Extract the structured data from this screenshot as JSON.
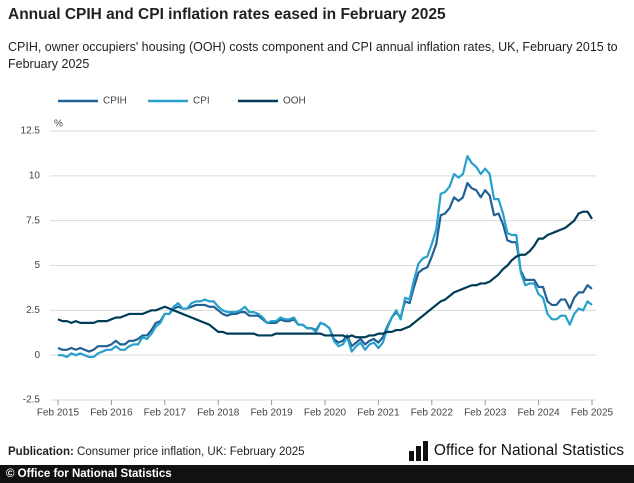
{
  "chart_data": {
    "type": "line",
    "title": "Annual CPIH and CPI inflation rates eased in February 2025",
    "subtitle": "CPIH, owner occupiers' housing (OOH) costs component and CPI annual inflation rates, UK, February 2015 to February 2025",
    "y_unit_label": "%",
    "categories": [
      "Feb 2015",
      null,
      null,
      null,
      null,
      null,
      null,
      null,
      null,
      null,
      null,
      null,
      "Feb 2016",
      null,
      null,
      null,
      null,
      null,
      null,
      null,
      null,
      null,
      null,
      null,
      "Feb 2017",
      null,
      null,
      null,
      null,
      null,
      null,
      null,
      null,
      null,
      null,
      null,
      "Feb 2018",
      null,
      null,
      null,
      null,
      null,
      null,
      null,
      null,
      null,
      null,
      null,
      "Feb 2019",
      null,
      null,
      null,
      null,
      null,
      null,
      null,
      null,
      null,
      null,
      null,
      "Feb 2020",
      null,
      null,
      null,
      null,
      null,
      null,
      null,
      null,
      null,
      null,
      null,
      "Feb 2021",
      null,
      null,
      null,
      null,
      null,
      null,
      null,
      null,
      null,
      null,
      null,
      "Feb 2022",
      null,
      null,
      null,
      null,
      null,
      null,
      null,
      null,
      null,
      null,
      null,
      "Feb 2023",
      null,
      null,
      null,
      null,
      null,
      null,
      null,
      null,
      null,
      null,
      null,
      "Feb 2024",
      null,
      null,
      null,
      null,
      null,
      null,
      null,
      null,
      null,
      null,
      null,
      "Feb 2025"
    ],
    "series": [
      {
        "name": "CPIH",
        "color": "#206095",
        "values": [
          0.4,
          0.3,
          0.3,
          0.4,
          0.3,
          0.4,
          0.3,
          0.2,
          0.3,
          0.5,
          0.5,
          0.5,
          0.6,
          0.8,
          0.6,
          0.6,
          0.8,
          0.8,
          0.9,
          1.1,
          1.1,
          1.4,
          1.8,
          1.9,
          2.3,
          2.3,
          2.6,
          2.7,
          2.6,
          2.6,
          2.7,
          2.8,
          2.8,
          2.8,
          2.7,
          2.7,
          2.5,
          2.3,
          2.2,
          2.3,
          2.3,
          2.4,
          2.4,
          2.2,
          2.2,
          2.2,
          2.0,
          1.8,
          1.8,
          1.8,
          2.0,
          1.9,
          1.9,
          2.0,
          1.7,
          1.7,
          1.5,
          1.5,
          1.4,
          1.8,
          1.7,
          1.5,
          0.9,
          0.7,
          0.8,
          1.1,
          0.5,
          0.7,
          0.9,
          0.6,
          0.8,
          0.9,
          0.7,
          1.0,
          1.6,
          2.1,
          2.4,
          2.1,
          3.0,
          2.9,
          3.8,
          4.6,
          4.8,
          4.9,
          5.5,
          6.2,
          7.8,
          7.9,
          8.2,
          8.8,
          8.6,
          8.8,
          9.6,
          9.3,
          9.2,
          8.8,
          9.2,
          8.9,
          7.8,
          7.9,
          7.3,
          6.4,
          6.3,
          6.3,
          4.7,
          4.2,
          4.2,
          4.2,
          3.8,
          3.8,
          3.0,
          2.8,
          2.8,
          3.1,
          3.1,
          2.6,
          3.2,
          3.5,
          3.5,
          3.9,
          3.7
        ]
      },
      {
        "name": "CPI",
        "color": "#27a0cc",
        "values": [
          0.0,
          0.0,
          -0.1,
          0.1,
          0.0,
          0.1,
          0.0,
          -0.1,
          -0.1,
          0.1,
          0.2,
          0.3,
          0.3,
          0.5,
          0.3,
          0.3,
          0.5,
          0.6,
          0.6,
          1.0,
          0.9,
          1.2,
          1.6,
          1.8,
          2.3,
          2.3,
          2.7,
          2.9,
          2.6,
          2.6,
          2.9,
          3.0,
          3.0,
          3.1,
          3.0,
          3.0,
          2.7,
          2.5,
          2.4,
          2.4,
          2.4,
          2.5,
          2.7,
          2.4,
          2.4,
          2.3,
          2.1,
          1.8,
          1.9,
          1.9,
          2.1,
          2.0,
          2.0,
          2.1,
          1.7,
          1.7,
          1.5,
          1.5,
          1.3,
          1.8,
          1.7,
          1.5,
          0.8,
          0.5,
          0.6,
          1.0,
          0.2,
          0.5,
          0.7,
          0.3,
          0.6,
          0.7,
          0.4,
          0.7,
          1.5,
          2.1,
          2.5,
          2.0,
          3.2,
          3.1,
          4.2,
          5.1,
          5.4,
          5.5,
          6.2,
          7.0,
          9.0,
          9.1,
          9.4,
          10.1,
          9.9,
          10.1,
          11.1,
          10.7,
          10.5,
          10.1,
          10.4,
          10.1,
          8.7,
          8.7,
          7.9,
          6.8,
          6.7,
          6.7,
          4.6,
          3.9,
          4.0,
          4.0,
          3.4,
          3.2,
          2.3,
          2.0,
          2.0,
          2.2,
          2.2,
          1.7,
          2.3,
          2.6,
          2.5,
          3.0,
          2.8
        ]
      },
      {
        "name": "OOH",
        "color": "#003c57",
        "values": [
          2.0,
          1.9,
          1.9,
          1.8,
          1.9,
          1.8,
          1.8,
          1.8,
          1.8,
          1.9,
          1.9,
          1.9,
          2.0,
          2.1,
          2.1,
          2.2,
          2.3,
          2.3,
          2.3,
          2.3,
          2.4,
          2.5,
          2.5,
          2.6,
          2.7,
          2.6,
          2.5,
          2.4,
          2.3,
          2.2,
          2.1,
          2.0,
          1.9,
          1.8,
          1.7,
          1.5,
          1.3,
          1.3,
          1.2,
          1.2,
          1.2,
          1.2,
          1.2,
          1.2,
          1.2,
          1.1,
          1.1,
          1.1,
          1.1,
          1.2,
          1.2,
          1.2,
          1.2,
          1.2,
          1.2,
          1.2,
          1.2,
          1.2,
          1.2,
          1.2,
          1.1,
          1.1,
          1.1,
          1.1,
          1.1,
          1.0,
          1.1,
          1.0,
          1.0,
          1.0,
          1.1,
          1.1,
          1.2,
          1.2,
          1.3,
          1.3,
          1.4,
          1.4,
          1.5,
          1.6,
          1.8,
          2.0,
          2.2,
          2.4,
          2.6,
          2.8,
          3.0,
          3.1,
          3.3,
          3.5,
          3.6,
          3.7,
          3.8,
          3.9,
          3.9,
          4.0,
          4.0,
          4.1,
          4.3,
          4.5,
          4.8,
          5.0,
          5.3,
          5.5,
          5.6,
          5.6,
          5.8,
          6.1,
          6.5,
          6.5,
          6.7,
          6.8,
          6.9,
          7.0,
          7.1,
          7.3,
          7.5,
          7.9,
          8.0,
          8.0,
          7.6
        ]
      }
    ],
    "ylim": [
      -2.5,
      12.5
    ],
    "yticks": [
      -2.5,
      0,
      2.5,
      5,
      7.5,
      10,
      12.5
    ],
    "grid": true
  },
  "footer": {
    "publication_label": "Publication:",
    "publication_text": "Consumer price inflation, UK: February 2025",
    "logo_text": "Office for National Statistics",
    "credit": "© Office for National Statistics"
  }
}
